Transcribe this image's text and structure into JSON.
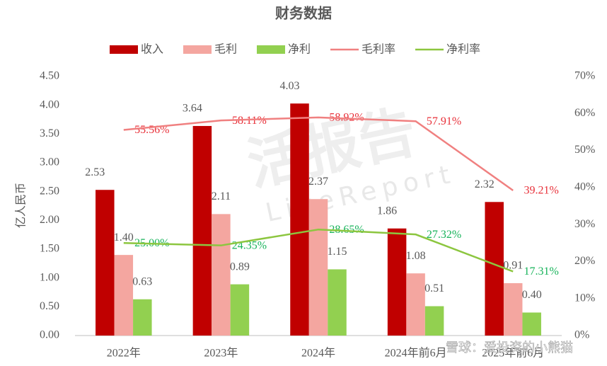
{
  "chart_data": {
    "type": "bar-line",
    "title": "财务数据",
    "y_label": "亿人民币",
    "categories": [
      "2022年",
      "2023年",
      "2024年",
      "2024年前6月",
      "2025年前6月"
    ],
    "series": [
      {
        "name": "收入",
        "type": "bar",
        "color": "#c00000",
        "values": [
          2.53,
          3.64,
          4.03,
          1.86,
          2.32
        ],
        "value_labels": [
          "2.53",
          "3.64",
          "4.03",
          "1.86",
          "2.32"
        ]
      },
      {
        "name": "毛利",
        "type": "bar",
        "color": "#f4a6a0",
        "values": [
          1.4,
          2.11,
          2.37,
          1.08,
          0.91
        ],
        "value_labels": [
          "1.40",
          "2.11",
          "2.37",
          "1.08",
          "0.91"
        ]
      },
      {
        "name": "净利",
        "type": "bar",
        "color": "#92d050",
        "values": [
          0.63,
          0.89,
          1.15,
          0.51,
          0.4
        ],
        "value_labels": [
          "0.63",
          "0.89",
          "1.15",
          "0.51",
          "0.40"
        ]
      },
      {
        "name": "毛利率",
        "type": "line",
        "axis": "y2",
        "color": "#f08080",
        "label_color": "#e8313a",
        "values": [
          55.56,
          58.11,
          58.92,
          57.91,
          39.21
        ],
        "value_labels": [
          "55.56%",
          "58.11%",
          "58.92%",
          "57.91%",
          "39.21%"
        ]
      },
      {
        "name": "净利率",
        "type": "line",
        "axis": "y2",
        "color": "#8cc63f",
        "label_color": "#17b35a",
        "values": [
          25.0,
          24.35,
          28.65,
          27.32,
          17.31
        ],
        "value_labels": [
          "25.00%",
          "24.35%",
          "28.65%",
          "27.32%",
          "17.31%"
        ]
      }
    ],
    "ylim": [
      0,
      4.5
    ],
    "yticks": [
      {
        "value": 0,
        "label": "0.00"
      },
      {
        "value": 0.5,
        "label": "0.50"
      },
      {
        "value": 1,
        "label": "1.00"
      },
      {
        "value": 1.5,
        "label": "1.50"
      },
      {
        "value": 2,
        "label": "2.00"
      },
      {
        "value": 2.5,
        "label": "2.50"
      },
      {
        "value": 3,
        "label": "3.00"
      },
      {
        "value": 3.5,
        "label": "3.50"
      },
      {
        "value": 4,
        "label": "4.00"
      },
      {
        "value": 4.5,
        "label": "4.50"
      }
    ],
    "y2lim": [
      0,
      70
    ],
    "y2ticks": [
      {
        "value": 0,
        "label": "0%"
      },
      {
        "value": 10,
        "label": "10%"
      },
      {
        "value": 20,
        "label": "20%"
      },
      {
        "value": 30,
        "label": "30%"
      },
      {
        "value": 40,
        "label": "40%"
      },
      {
        "value": 50,
        "label": "50%"
      },
      {
        "value": 60,
        "label": "60%"
      },
      {
        "value": 70,
        "label": "70%"
      }
    ],
    "legend": "top",
    "watermarks": [
      "活报告",
      "LiveReport",
      "雪球：爱投资的小熊猫"
    ]
  }
}
